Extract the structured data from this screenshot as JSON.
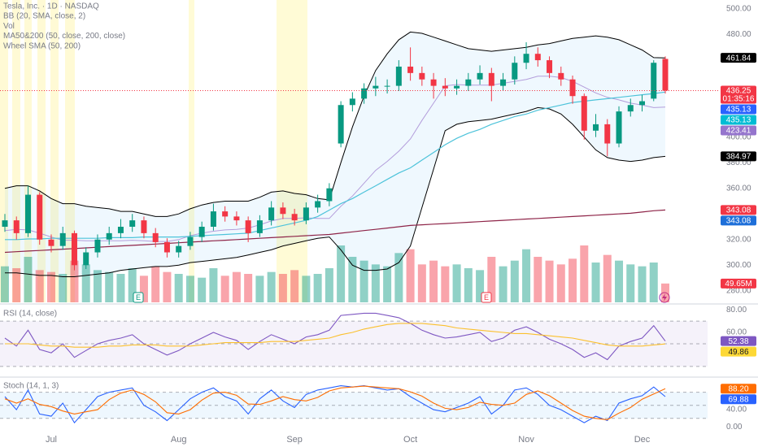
{
  "chart_data": [
    {
      "type": "candlestick",
      "title": "Tesla, Inc. · 1D · NASDAQ",
      "indicators": [
        "BB (20, SMA, close, 2)",
        "Vol",
        "MA50&200 (50, close, 200, close)",
        "Wheel SMA (50, 200)"
      ],
      "event_labels": [
        "E",
        "E"
      ],
      "categories": [
        null,
        null,
        null,
        null,
        "Jul",
        null,
        null,
        null,
        null,
        null,
        null,
        null,
        null,
        null,
        null,
        "Aug",
        null,
        null,
        null,
        null,
        null,
        null,
        null,
        null,
        null,
        "Sep",
        null,
        null,
        null,
        null,
        null,
        null,
        null,
        null,
        null,
        "Oct",
        null,
        null,
        null,
        null,
        null,
        null,
        null,
        null,
        null,
        "Nov",
        null,
        null,
        null,
        null,
        null,
        null,
        null,
        null,
        null,
        "Dec",
        null,
        null
      ],
      "open": [
        330,
        335,
        325,
        355,
        320,
        315,
        325,
        300,
        310,
        320,
        325,
        330,
        335,
        325,
        318,
        310,
        315,
        322,
        330,
        342,
        338,
        335,
        325,
        335,
        345,
        340,
        335,
        345,
        350,
        395,
        425,
        430,
        438,
        440,
        440,
        455,
        450,
        445,
        440,
        438,
        440,
        445,
        450,
        440,
        445,
        458,
        465,
        460,
        450,
        445,
        432,
        405,
        410,
        395,
        420,
        425,
        430,
        461
      ],
      "high": [
        340,
        338,
        362,
        357,
        324,
        330,
        327,
        314,
        324,
        330,
        336,
        340,
        338,
        329,
        321,
        319,
        326,
        334,
        348,
        346,
        342,
        338,
        339,
        350,
        349,
        344,
        349,
        355,
        364,
        428,
        435,
        442,
        447,
        445,
        460,
        470,
        455,
        450,
        446,
        445,
        450,
        456,
        454,
        450,
        463,
        474,
        470,
        463,
        455,
        448,
        434,
        418,
        414,
        424,
        430,
        433,
        460,
        463
      ],
      "low": [
        326,
        320,
        322,
        316,
        310,
        312,
        296,
        297,
        306,
        316,
        321,
        326,
        321,
        314,
        306,
        306,
        312,
        318,
        327,
        334,
        331,
        318,
        322,
        331,
        336,
        331,
        332,
        341,
        346,
        392,
        420,
        426,
        432,
        434,
        436,
        444,
        440,
        430,
        432,
        433,
        436,
        441,
        428,
        436,
        441,
        453,
        455,
        446,
        440,
        426,
        398,
        400,
        385,
        392,
        416,
        420,
        428,
        434
      ],
      "close": [
        335,
        325,
        355,
        320,
        315,
        325,
        300,
        310,
        320,
        325,
        330,
        335,
        325,
        318,
        310,
        315,
        322,
        330,
        342,
        338,
        335,
        325,
        335,
        345,
        340,
        335,
        345,
        350,
        360,
        425,
        430,
        438,
        440,
        440,
        455,
        450,
        445,
        440,
        438,
        440,
        445,
        450,
        440,
        445,
        458,
        465,
        460,
        450,
        445,
        432,
        405,
        410,
        395,
        420,
        425,
        428,
        458,
        436.25
      ],
      "up_color": "#089981",
      "down_color": "#f23645",
      "volume": [
        95,
        90,
        120,
        85,
        80,
        75,
        110,
        100,
        85,
        80,
        75,
        90,
        70,
        95,
        80,
        75,
        70,
        65,
        90,
        70,
        80,
        75,
        70,
        80,
        75,
        85,
        70,
        75,
        90,
        150,
        120,
        110,
        100,
        95,
        130,
        140,
        100,
        110,
        95,
        100,
        90,
        85,
        120,
        95,
        110,
        140,
        120,
        110,
        100,
        115,
        150,
        105,
        125,
        110,
        100,
        95,
        105,
        49.65
      ],
      "volume_badge": {
        "value": 49.65,
        "label": "49.65M",
        "color": "#f23645"
      },
      "bands": {
        "color": "#000000",
        "fill": "#2196f3",
        "basis_color": "#b39ddb",
        "upper": [
          360,
          362,
          362,
          358,
          352,
          348,
          348,
          346,
          345,
          344,
          342,
          342,
          340,
          338,
          338,
          340,
          344,
          347,
          349,
          350,
          350,
          350,
          353,
          357,
          358,
          356,
          355,
          352,
          351,
          380,
          408,
          432,
          452,
          465,
          476,
          482,
          481,
          478,
          475,
          472,
          469,
          468,
          467,
          468,
          469,
          470,
          472,
          473,
          475,
          477,
          478,
          479,
          478,
          476,
          472,
          468,
          462,
          461.84
        ],
        "lower": [
          294,
          294,
          293,
          292,
          292,
          291,
          291,
          292,
          293,
          294,
          296,
          297,
          298,
          299,
          299,
          300,
          302,
          303,
          304,
          305,
          306,
          308,
          310,
          312,
          315,
          317,
          319,
          321,
          322,
          312,
          300,
          296,
          296,
          297,
          302,
          315,
          345,
          375,
          405,
          410,
          412,
          413,
          414,
          416,
          418,
          420,
          423,
          422,
          418,
          410,
          400,
          390,
          384,
          382,
          381,
          382,
          384,
          384.97
        ],
        "basis": [
          327,
          328,
          327.5,
          325,
          322,
          319.5,
          319.5,
          319,
          319,
          319,
          319,
          319.5,
          319,
          318.5,
          318.5,
          320,
          323,
          325,
          326.5,
          327.5,
          328,
          329,
          331.5,
          334.5,
          336.5,
          336.5,
          337,
          336.5,
          336.5,
          346,
          354,
          364,
          374,
          381,
          389,
          398.5,
          413,
          426.5,
          440,
          441,
          440.5,
          440.5,
          440.5,
          442,
          443.5,
          445,
          447.5,
          447.5,
          446.5,
          443.5,
          439,
          434.5,
          431,
          429,
          426.5,
          425,
          423,
          423.41
        ]
      },
      "moving_averages": [
        {
          "color": "#4dc3da",
          "values": [
            320,
            320,
            320.5,
            320.5,
            321,
            321,
            321,
            321,
            321,
            321.5,
            321.5,
            321.5,
            322,
            322,
            322,
            322,
            322.5,
            323,
            323.5,
            324,
            324.5,
            325,
            327,
            329,
            331,
            333,
            335,
            338,
            343,
            348,
            352,
            357,
            362,
            367,
            372,
            376,
            382,
            388,
            394,
            399,
            403,
            406,
            410,
            413,
            416,
            418,
            421,
            423,
            425,
            427,
            428,
            429,
            430,
            431,
            432,
            433,
            434,
            435.13
          ]
        },
        {
          "color": "#8e2448",
          "values": [
            310,
            310.5,
            311,
            311.5,
            312,
            312.5,
            313,
            313.5,
            314,
            314.5,
            315,
            315.5,
            316,
            316.5,
            317,
            317.5,
            318,
            318.5,
            319,
            319.5,
            320,
            320.5,
            321,
            321.5,
            322,
            322.5,
            323,
            323.5,
            324,
            325,
            326,
            327,
            328,
            329,
            330,
            331,
            331.5,
            332,
            332.5,
            333,
            333.5,
            334,
            334.5,
            335,
            335.5,
            336,
            336.5,
            337,
            337.5,
            338,
            338.5,
            339,
            339.5,
            340,
            340.5,
            341.5,
            342.5,
            343.08
          ]
        }
      ],
      "price_badges": [
        {
          "value": 461.84,
          "color": "#000000"
        },
        {
          "value": 436.25,
          "color": "#f23645",
          "countdown": "01:35:16"
        },
        {
          "value": 435.13,
          "color": "#2962ff"
        },
        {
          "value": 435.13,
          "color": "#00bcd4"
        },
        {
          "value": 423.41,
          "color": "#9575cd"
        },
        {
          "value": 384.97,
          "color": "#000000"
        },
        {
          "value": 343.08,
          "color": "#f23645"
        },
        {
          "value": 343.08,
          "color": "#1e6fd9"
        }
      ],
      "ylim": [
        271,
        507
      ],
      "yticks": [
        {
          "value": 280,
          "label": "280.00"
        },
        {
          "value": 300,
          "label": "300.00"
        },
        {
          "value": 320,
          "label": "320.00"
        },
        {
          "value": 360,
          "label": "360.00"
        },
        {
          "value": 380,
          "label": "380.00"
        },
        {
          "value": 400,
          "label": "400.00"
        },
        {
          "value": 480,
          "label": "480.00"
        },
        {
          "value": 500,
          "label": "500.00"
        }
      ],
      "grid": false
    },
    {
      "type": "line",
      "title": "RSI (14, close)",
      "ylim": [
        22,
        83
      ],
      "yticks": [
        {
          "value": 60,
          "label": "60.00"
        },
        {
          "value": 80,
          "label": "80.00"
        }
      ],
      "levels": [
        70,
        50,
        30
      ],
      "band_fill": "#7e57c2",
      "series": [
        {
          "color": "#7e57c2",
          "values": [
            55,
            48,
            62,
            45,
            42,
            50,
            38,
            44,
            50,
            53,
            55,
            58,
            50,
            45,
            40,
            44,
            50,
            55,
            60,
            56,
            53,
            45,
            52,
            58,
            54,
            50,
            56,
            58,
            62,
            75,
            76,
            77,
            77,
            75,
            73,
            68,
            62,
            58,
            55,
            56,
            58,
            60,
            52,
            55,
            62,
            65,
            60,
            54,
            50,
            45,
            38,
            42,
            36,
            48,
            52,
            55,
            66,
            52.38
          ]
        },
        {
          "color": "#fbc02d",
          "values": [
            50,
            50,
            50,
            49,
            48,
            48,
            47,
            47,
            47,
            48,
            48,
            49,
            49,
            49,
            48,
            48,
            48,
            49,
            50,
            51,
            51,
            51,
            51,
            52,
            52,
            52,
            53,
            54,
            55,
            58,
            60,
            63,
            65,
            67,
            68,
            68,
            68,
            67,
            66,
            64,
            63,
            62,
            61,
            60,
            59,
            59,
            58,
            57,
            56,
            55,
            53,
            51,
            49,
            48,
            48,
            48,
            49,
            49.86
          ]
        }
      ],
      "badges": [
        {
          "value": 52.38,
          "color": "#7e57c2"
        },
        {
          "value": 49.86,
          "color": "#fdd835"
        }
      ],
      "grid": false
    },
    {
      "type": "line",
      "title": "Stoch (14, 1, 3)",
      "ylim": [
        -14,
        111
      ],
      "yticks": [
        {
          "value": 0,
          "label": "0.00"
        },
        {
          "value": 40,
          "label": "40.00"
        }
      ],
      "levels": [
        80,
        50,
        20
      ],
      "band_fill": "#2196f3",
      "series": [
        {
          "color": "#2962ff",
          "values": [
            70,
            40,
            85,
            30,
            25,
            55,
            10,
            40,
            70,
            80,
            85,
            90,
            50,
            35,
            15,
            40,
            65,
            80,
            90,
            70,
            60,
            30,
            65,
            85,
            60,
            45,
            75,
            85,
            90,
            95,
            92,
            95,
            90,
            85,
            88,
            70,
            55,
            40,
            35,
            45,
            55,
            70,
            30,
            50,
            85,
            90,
            75,
            50,
            40,
            25,
            10,
            25,
            15,
            55,
            65,
            72,
            92,
            69.88
          ]
        },
        {
          "color": "#ff6d00",
          "values": [
            65,
            55,
            65,
            52,
            47,
            37,
            30,
            35,
            40,
            63,
            78,
            85,
            75,
            58,
            33,
            30,
            40,
            62,
            78,
            80,
            73,
            53,
            52,
            60,
            70,
            63,
            60,
            68,
            83,
            90,
            92,
            94,
            92,
            90,
            88,
            81,
            71,
            55,
            43,
            40,
            45,
            57,
            52,
            50,
            55,
            75,
            83,
            72,
            55,
            38,
            25,
            20,
            17,
            32,
            45,
            64,
            76,
            88.2
          ]
        }
      ],
      "badges": [
        {
          "value": 88.2,
          "label": "88.20",
          "color": "#ff6d00"
        },
        {
          "value": 69.88,
          "color": "#2962ff"
        }
      ],
      "grid": false
    }
  ]
}
